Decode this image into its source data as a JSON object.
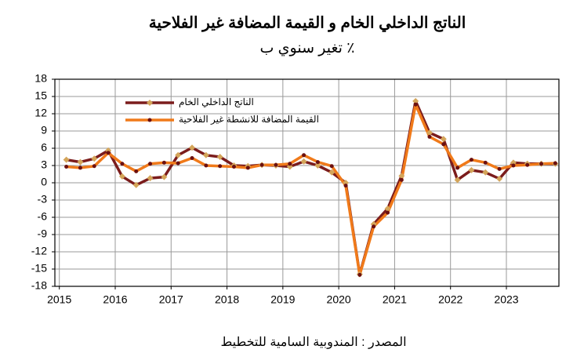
{
  "chart_data": {
    "type": "line",
    "title": "الناتج الداخلي الخام و القيمة المضافة غير الفلاحية",
    "subtitle": "تغير سنوي ب ٪",
    "source": "المصدر : المندوبية السامية للتخطيط",
    "x": [
      2015.125,
      2015.375,
      2015.625,
      2015.875,
      2016.125,
      2016.375,
      2016.625,
      2016.875,
      2017.125,
      2017.375,
      2017.625,
      2017.875,
      2018.125,
      2018.375,
      2018.625,
      2018.875,
      2019.125,
      2019.375,
      2019.625,
      2019.875,
      2020.125,
      2020.375,
      2020.625,
      2020.875,
      2021.125,
      2021.375,
      2021.625,
      2021.875,
      2022.125,
      2022.375,
      2022.625,
      2022.875,
      2023.125,
      2023.375,
      2023.625,
      2023.875
    ],
    "series": [
      {
        "name": "الناتج الداخلي الخام",
        "color": "#7b1c1c",
        "marker": "diamond",
        "marker_color": "#d4a55a",
        "values": [
          4.0,
          3.6,
          4.2,
          5.6,
          1.1,
          -0.4,
          0.8,
          1.0,
          4.8,
          6.1,
          4.8,
          4.5,
          3.0,
          2.9,
          3.1,
          3.0,
          2.8,
          3.7,
          3.0,
          1.8,
          0.0,
          -15.9,
          -7.2,
          -4.5,
          1.2,
          14.2,
          8.7,
          7.6,
          0.5,
          2.2,
          1.8,
          0.7,
          3.5,
          3.3,
          3.3,
          3.3
        ]
      },
      {
        "name": "القيمة المضافة للانشطة غير الفلاحية",
        "color": "#f07a1a",
        "marker": "circle",
        "marker_color": "#6b1010",
        "values": [
          2.8,
          2.6,
          2.9,
          5.2,
          3.3,
          2.0,
          3.3,
          3.5,
          3.4,
          4.3,
          3.0,
          2.9,
          2.8,
          2.6,
          3.1,
          3.1,
          3.3,
          4.8,
          3.6,
          2.9,
          -0.5,
          -16.0,
          -7.6,
          -5.2,
          0.5,
          13.6,
          8.0,
          6.7,
          2.6,
          4.0,
          3.5,
          2.4,
          3.0,
          3.1,
          3.3,
          3.4
        ]
      }
    ],
    "xlim": [
      2014.92,
      2023.94
    ],
    "xticks": [
      2015,
      2016,
      2017,
      2018,
      2019,
      2020,
      2021,
      2022,
      2023
    ],
    "ylim": [
      -18,
      18
    ],
    "yticks": [
      18,
      15,
      12,
      9,
      6,
      3,
      0,
      -3,
      -6,
      -9,
      -12,
      -15,
      -18
    ],
    "grid": true,
    "legend": "upper left"
  }
}
